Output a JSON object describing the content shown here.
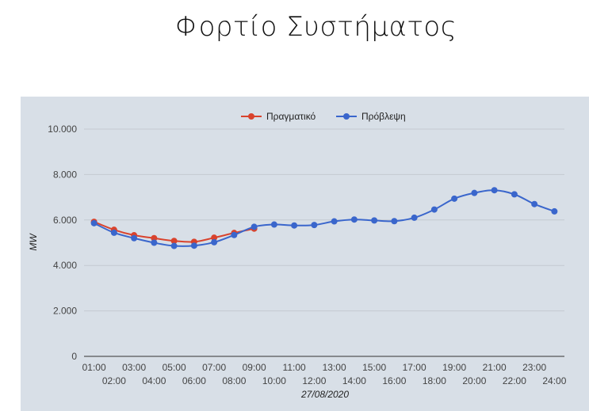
{
  "page": {
    "title": "Φορτίο Συστήματος"
  },
  "chart_data": {
    "type": "line",
    "title": "",
    "xlabel": "27/08/2020",
    "ylabel": "MW",
    "ylim": [
      0,
      10000
    ],
    "y_ticks": [
      "0",
      "2.000",
      "4.000",
      "6.000",
      "8.000",
      "10.000"
    ],
    "y_tick_values": [
      0,
      2000,
      4000,
      6000,
      8000,
      10000
    ],
    "grid": true,
    "legend_position": "top",
    "categories": [
      "01:00",
      "02:00",
      "03:00",
      "04:00",
      "05:00",
      "06:00",
      "07:00",
      "08:00",
      "09:00",
      "10:00",
      "11:00",
      "12:00",
      "13:00",
      "14:00",
      "15:00",
      "16:00",
      "17:00",
      "18:00",
      "19:00",
      "20:00",
      "21:00",
      "22:00",
      "23:00",
      "24:00"
    ],
    "series": [
      {
        "name": "Πραγματικό",
        "color": "#d9432d",
        "values": [
          5920,
          5570,
          5330,
          5200,
          5080,
          5040,
          5220,
          5430,
          5620,
          null,
          null,
          null,
          null,
          null,
          null,
          null,
          null,
          null,
          null,
          null,
          null,
          null,
          null,
          null
        ]
      },
      {
        "name": "Πρόβλεψη",
        "color": "#3a66cc",
        "values": [
          5860,
          5440,
          5200,
          5000,
          4860,
          4870,
          5020,
          5340,
          5700,
          5800,
          5760,
          5780,
          5940,
          6020,
          5980,
          5950,
          6100,
          6460,
          6940,
          7190,
          7310,
          7130,
          6700,
          6380
        ]
      }
    ]
  }
}
